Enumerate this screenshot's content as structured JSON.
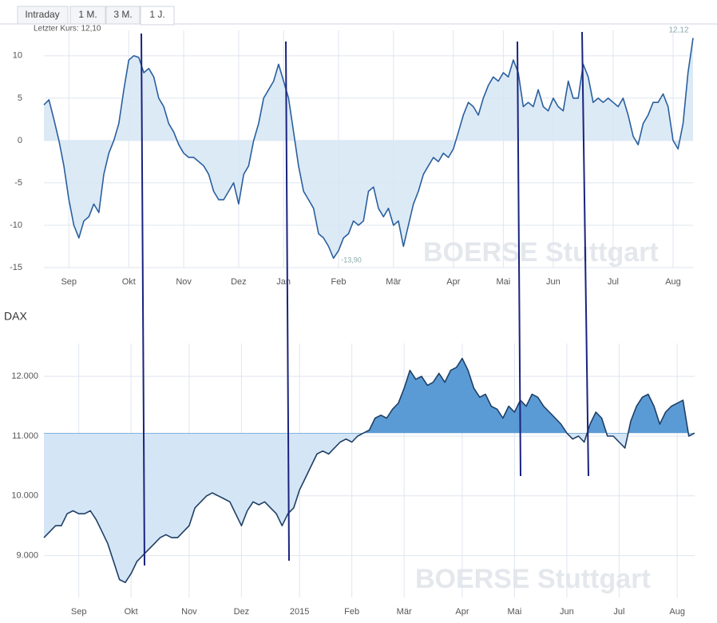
{
  "tabs": [
    "Intraday",
    "1 M.",
    "3 M.",
    "1 J."
  ],
  "chart_data": [
    {
      "type": "area",
      "annotations": [
        "Letzter Kurs: 12,10",
        "12,12",
        "-13,90"
      ],
      "watermark": "BOERSE Stuttgart",
      "color": "#2a5f9e",
      "fill": "#d6e6f5",
      "baseline": 0,
      "grid": true,
      "values": [
        4.2,
        4.8,
        2.5,
        0,
        -3,
        -7,
        -10,
        -11.5,
        -9.5,
        -9,
        -7.5,
        -8.5,
        -4,
        -1.5,
        0,
        2,
        6,
        9.5,
        10,
        9.8,
        8,
        8.5,
        7.5,
        5,
        4,
        2,
        1,
        -0.5,
        -1.5,
        -2,
        -2,
        -2.5,
        -3,
        -4,
        -6,
        -7,
        -7,
        -6,
        -5,
        -7.5,
        -4,
        -3,
        0,
        2,
        5,
        6,
        7,
        9,
        7,
        5,
        1,
        -3,
        -6,
        -7,
        -8,
        -11,
        -11.5,
        -12.5,
        -13.9,
        -13,
        -11.5,
        -11,
        -9.5,
        -10,
        -9.5,
        -6,
        -5.5,
        -8,
        -9,
        -8,
        -10,
        -9.5,
        -12.5,
        -10,
        -7.5,
        -6,
        -4,
        -3,
        -2,
        -2.5,
        -1.5,
        -2,
        -1,
        1,
        3,
        4.5,
        4,
        3,
        5,
        6.5,
        7.5,
        7,
        8,
        7.5,
        9.5,
        8,
        4,
        4.5,
        4,
        6,
        4,
        3.5,
        5,
        4,
        3.5,
        7,
        5,
        5,
        9,
        7.5,
        4.5,
        5,
        4.5,
        5,
        4.5,
        4,
        5,
        3,
        0.5,
        -0.5,
        2,
        3,
        4.5,
        4.5,
        5.5,
        4,
        0,
        -1,
        2,
        8,
        12.1
      ],
      "xlim": [
        0,
        130
      ],
      "xticks": [
        {
          "value": 5,
          "label": "Sep"
        },
        {
          "value": 17,
          "label": "Okt"
        },
        {
          "value": 28,
          "label": "Nov"
        },
        {
          "value": 39,
          "label": "Dez"
        },
        {
          "value": 48,
          "label": "Jan"
        },
        {
          "value": 59,
          "label": "Feb"
        },
        {
          "value": 70,
          "label": "Mär"
        },
        {
          "value": 82,
          "label": "Apr"
        },
        {
          "value": 92,
          "label": "Mai"
        },
        {
          "value": 102,
          "label": "Jun"
        },
        {
          "value": 114,
          "label": "Jul"
        },
        {
          "value": 126,
          "label": "Aug"
        }
      ],
      "ylim": [
        -15,
        13
      ],
      "yticks": [
        -15,
        -10,
        -5,
        0,
        5,
        10
      ]
    },
    {
      "type": "area",
      "title": "DAX",
      "watermark": "BOERSE Stuttgart",
      "color": "#1e3f66",
      "fill": "#d4e5f5",
      "fill_above": "#5b9bd5",
      "baseline": 11050,
      "grid": true,
      "values": [
        9300,
        9400,
        9500,
        9500,
        9700,
        9750,
        9700,
        9700,
        9750,
        9600,
        9400,
        9200,
        8900,
        8600,
        8550,
        8700,
        8900,
        9000,
        9100,
        9200,
        9300,
        9350,
        9300,
        9300,
        9400,
        9500,
        9800,
        9900,
        10000,
        10050,
        10000,
        9950,
        9900,
        9700,
        9500,
        9750,
        9900,
        9850,
        9900,
        9800,
        9700,
        9500,
        9700,
        9800,
        10100,
        10300,
        10500,
        10700,
        10750,
        10700,
        10800,
        10900,
        10950,
        10900,
        11000,
        11050,
        11100,
        11300,
        11350,
        11300,
        11450,
        11550,
        11800,
        12100,
        11950,
        12000,
        11850,
        11900,
        12050,
        11900,
        12100,
        12150,
        12300,
        12100,
        11800,
        11650,
        11700,
        11500,
        11450,
        11300,
        11500,
        11400,
        11600,
        11500,
        11700,
        11650,
        11500,
        11400,
        11300,
        11200,
        11050,
        10950,
        11000,
        10900,
        11200,
        11400,
        11300,
        11000,
        11000,
        10900,
        10800,
        11250,
        11500,
        11650,
        11700,
        11500,
        11200,
        11400,
        11500,
        11550,
        11600,
        11000,
        11050
      ],
      "xlim": [
        0,
        112
      ],
      "xticks": [
        {
          "value": 6,
          "label": "Sep"
        },
        {
          "value": 15,
          "label": "Okt"
        },
        {
          "value": 25,
          "label": "Nov"
        },
        {
          "value": 34,
          "label": "Dez"
        },
        {
          "value": 44,
          "label": "2015"
        },
        {
          "value": 53,
          "label": "Feb"
        },
        {
          "value": 62,
          "label": "Mär"
        },
        {
          "value": 72,
          "label": "Apr"
        },
        {
          "value": 81,
          "label": "Mai"
        },
        {
          "value": 90,
          "label": "Jun"
        },
        {
          "value": 99,
          "label": "Jul"
        },
        {
          "value": 109,
          "label": "Aug"
        }
      ],
      "ylim": [
        8300,
        12550
      ],
      "yticks": [
        {
          "value": 9000,
          "label": "9.000"
        },
        {
          "value": 10000,
          "label": "10.000"
        },
        {
          "value": 11000,
          "label": "11.000"
        },
        {
          "value": 12000,
          "label": "12.000"
        }
      ]
    }
  ]
}
